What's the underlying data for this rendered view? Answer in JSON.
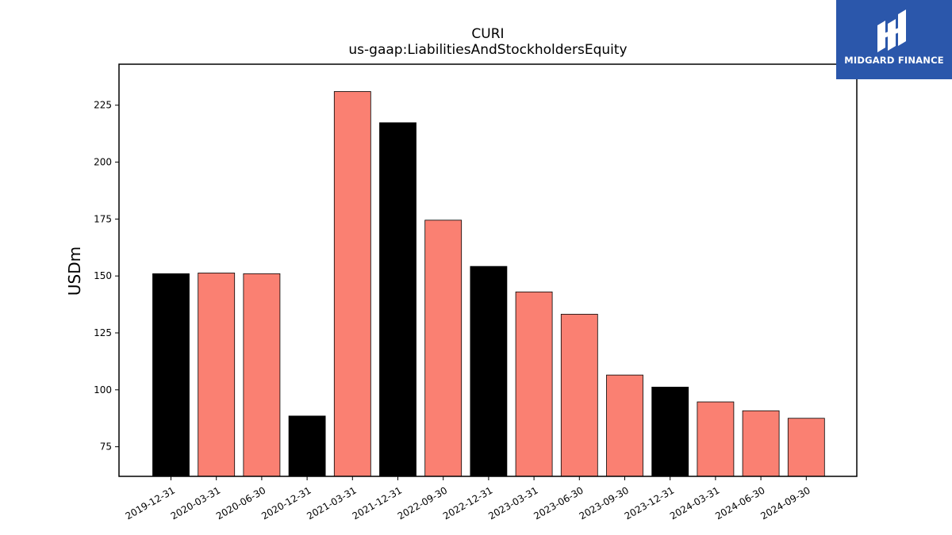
{
  "logo": {
    "text": "MIDGARD FINANCE"
  },
  "chart_data": {
    "type": "bar",
    "title": "CURI",
    "subtitle": "us-gaap:LiabilitiesAndStockholdersEquity",
    "xlabel": "",
    "ylabel": "USDm",
    "categories": [
      "2019-12-31",
      "2020-03-31",
      "2020-06-30",
      "2020-12-31",
      "2021-03-31",
      "2021-12-31",
      "2022-09-30",
      "2022-12-31",
      "2023-03-31",
      "2023-06-30",
      "2023-09-30",
      "2023-12-31",
      "2024-03-31",
      "2024-06-30",
      "2024-09-30"
    ],
    "values": [
      151,
      151.3,
      151,
      88.5,
      231,
      217.3,
      174.5,
      154.2,
      143,
      133.2,
      106.5,
      101.2,
      94.7,
      90.8,
      87.5
    ],
    "colors": [
      "#000000",
      "#fa8072",
      "#fa8072",
      "#000000",
      "#fa8072",
      "#000000",
      "#fa8072",
      "#000000",
      "#fa8072",
      "#fa8072",
      "#fa8072",
      "#000000",
      "#fa8072",
      "#fa8072",
      "#fa8072"
    ],
    "yticks": [
      75,
      100,
      125,
      150,
      175,
      200,
      225
    ],
    "ylim": [
      62,
      243
    ],
    "grid": false,
    "legend": "none"
  }
}
